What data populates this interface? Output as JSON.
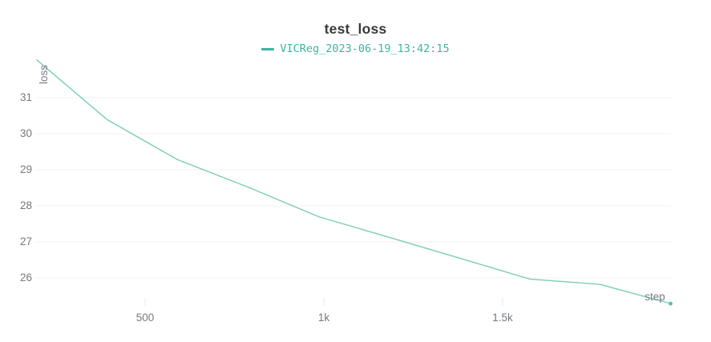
{
  "header": {
    "title": "test_loss",
    "legend_label": "VICReg_2023-06-19_13:42:15"
  },
  "colors": {
    "accent": "#3fb3a0",
    "line": "#7ccdb5",
    "end_dot": "#57c0a8",
    "grid": "#f1f1f4",
    "tick": "#e8e8eb",
    "text_gray": "#75787f",
    "title": "#3a3a3a",
    "background": "#ffffff"
  },
  "chart_data": {
    "type": "line",
    "title": "test_loss",
    "xlabel": "step",
    "ylabel": "loss",
    "grid": "horizontal-only",
    "legend_position": "top-center",
    "xlim": [
      195,
      1971
    ],
    "ylim": [
      25.0,
      32.4
    ],
    "x_ticks": [
      {
        "value": 500,
        "label": "500"
      },
      {
        "value": 1000,
        "label": "1k"
      },
      {
        "value": 1500,
        "label": "1.5k"
      }
    ],
    "y_ticks": [
      {
        "value": 26,
        "label": "26"
      },
      {
        "value": 27,
        "label": "27"
      },
      {
        "value": 28,
        "label": "28"
      },
      {
        "value": 29,
        "label": "29"
      },
      {
        "value": 30,
        "label": "30"
      },
      {
        "value": 31,
        "label": "31"
      }
    ],
    "series": [
      {
        "name": "VICReg_2023-06-19_13:42:15",
        "color": "#7ccdb5",
        "end_marker": true,
        "x": [
          197,
          394,
          591,
          788,
          985,
          1182,
          1379,
          1576,
          1773,
          1970
        ],
        "y": [
          32.05,
          30.39,
          29.28,
          28.52,
          27.7,
          27.13,
          26.55,
          25.97,
          25.82,
          25.29
        ]
      }
    ]
  }
}
